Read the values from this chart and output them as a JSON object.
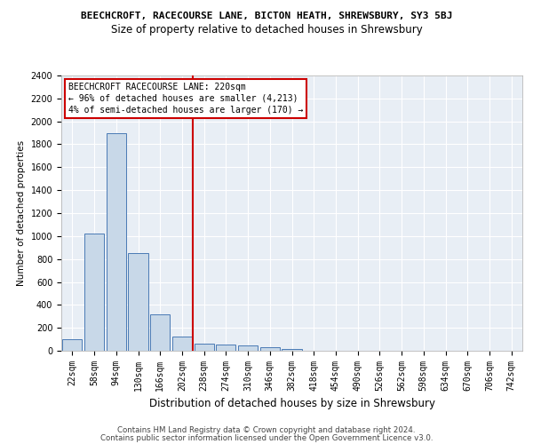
{
  "title_line1": "BEECHCROFT, RACECOURSE LANE, BICTON HEATH, SHREWSBURY, SY3 5BJ",
  "title_line2": "Size of property relative to detached houses in Shrewsbury",
  "xlabel": "Distribution of detached houses by size in Shrewsbury",
  "ylabel": "Number of detached properties",
  "footer_line1": "Contains HM Land Registry data © Crown copyright and database right 2024.",
  "footer_line2": "Contains public sector information licensed under the Open Government Licence v3.0.",
  "bin_labels": [
    "22sqm",
    "58sqm",
    "94sqm",
    "130sqm",
    "166sqm",
    "202sqm",
    "238sqm",
    "274sqm",
    "310sqm",
    "346sqm",
    "382sqm",
    "418sqm",
    "454sqm",
    "490sqm",
    "526sqm",
    "562sqm",
    "598sqm",
    "634sqm",
    "670sqm",
    "706sqm",
    "742sqm"
  ],
  "bar_values": [
    100,
    1020,
    1900,
    855,
    320,
    125,
    65,
    55,
    45,
    28,
    15,
    0,
    0,
    0,
    0,
    0,
    0,
    0,
    0,
    0,
    0
  ],
  "bar_color": "#c8d8e8",
  "bar_edge_color": "#4a7ab5",
  "vline_x": 5.5,
  "vline_color": "#cc0000",
  "annotation_line1": "BEECHCROFT RACECOURSE LANE: 220sqm",
  "annotation_line2": "← 96% of detached houses are smaller (4,213)",
  "annotation_line3": "4% of semi-detached houses are larger (170) →",
  "ylim": [
    0,
    2400
  ],
  "yticks": [
    0,
    200,
    400,
    600,
    800,
    1000,
    1200,
    1400,
    1600,
    1800,
    2000,
    2200,
    2400
  ],
  "bg_color": "#e8eef5",
  "grid_color": "#ffffff",
  "fig_bg_color": "#ffffff",
  "annotation_box_facecolor": "#ffffff",
  "annotation_box_edgecolor": "#cc0000",
  "title1_fontsize": 8.0,
  "title2_fontsize": 8.5,
  "ylabel_fontsize": 7.5,
  "xlabel_fontsize": 8.5,
  "tick_fontsize": 7.0,
  "footer_fontsize": 6.2,
  "annotation_fontsize": 7.0
}
